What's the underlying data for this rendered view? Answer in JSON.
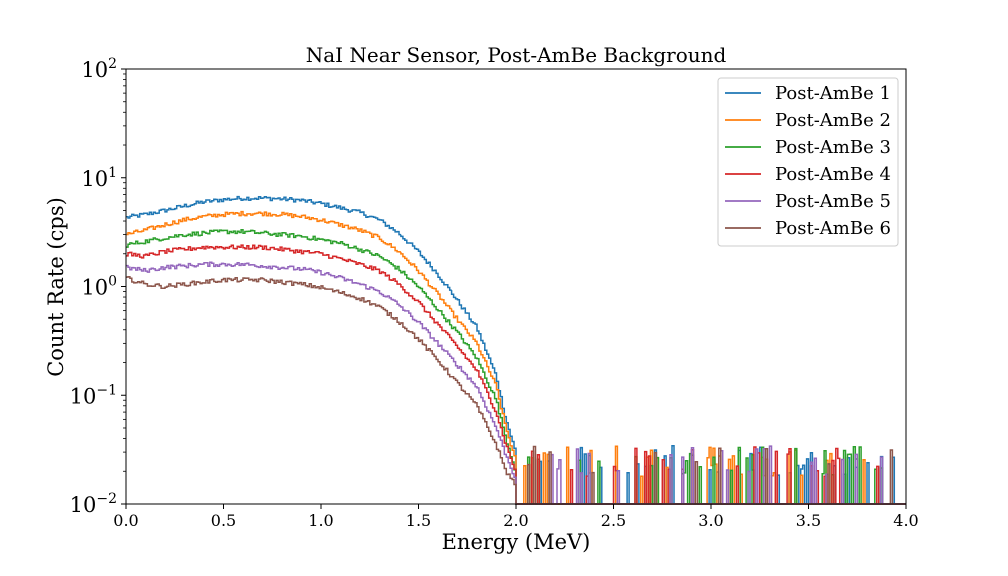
{
  "chart_data": {
    "type": "line",
    "title": "NaI Near Sensor, Post-AmBe Background",
    "xlabel": "Energy (MeV)",
    "ylabel": "Count Rate (cps)",
    "xlim": [
      0,
      4
    ],
    "ylim": [
      0.01,
      100
    ],
    "yscale": "log",
    "x_ticks": [
      "0.0",
      "0.5",
      "1.0",
      "1.5",
      "2.0",
      "2.5",
      "3.0",
      "3.5",
      "4.0"
    ],
    "y_ticks": [
      {
        "base": "10",
        "exp": "−2"
      },
      {
        "base": "10",
        "exp": "−1"
      },
      {
        "base": "10",
        "exp": "0"
      },
      {
        "base": "10",
        "exp": "1"
      },
      {
        "base": "10",
        "exp": "2"
      }
    ],
    "grid": false,
    "legend_position": "top-right",
    "x": [
      0.0,
      0.1,
      0.2,
      0.3,
      0.4,
      0.5,
      0.6,
      0.7,
      0.8,
      0.9,
      1.0,
      1.1,
      1.2,
      1.3,
      1.4,
      1.5,
      1.6,
      1.7,
      1.8,
      1.9,
      1.95,
      2.0
    ],
    "series": [
      {
        "name": "Post-AmBe 1",
        "color": "#1f77b4",
        "values": [
          4.3,
          4.6,
          5.0,
          5.5,
          6.0,
          6.3,
          6.5,
          6.5,
          6.4,
          6.2,
          5.8,
          5.3,
          4.8,
          4.1,
          3.1,
          2.1,
          1.3,
          0.75,
          0.42,
          0.15,
          0.06,
          0.03
        ]
      },
      {
        "name": "Post-AmBe 2",
        "color": "#ff7f0e",
        "values": [
          3.0,
          3.3,
          3.7,
          4.1,
          4.4,
          4.6,
          4.7,
          4.7,
          4.6,
          4.4,
          4.1,
          3.7,
          3.3,
          2.8,
          2.1,
          1.4,
          0.85,
          0.5,
          0.3,
          0.12,
          0.05,
          0.025
        ]
      },
      {
        "name": "Post-AmBe 3",
        "color": "#2ca02c",
        "values": [
          2.4,
          2.6,
          2.8,
          3.0,
          3.1,
          3.2,
          3.2,
          3.1,
          3.0,
          2.9,
          2.7,
          2.5,
          2.2,
          1.9,
          1.45,
          1.0,
          0.62,
          0.38,
          0.22,
          0.09,
          0.04,
          0.02
        ]
      },
      {
        "name": "Post-AmBe 4",
        "color": "#d62728",
        "values": [
          2.0,
          1.9,
          2.1,
          2.2,
          2.3,
          2.3,
          2.3,
          2.3,
          2.2,
          2.1,
          2.0,
          1.8,
          1.6,
          1.4,
          1.05,
          0.72,
          0.45,
          0.28,
          0.17,
          0.07,
          0.035,
          0.02
        ]
      },
      {
        "name": "Post-AmBe 5",
        "color": "#9467bd",
        "values": [
          1.5,
          1.4,
          1.5,
          1.55,
          1.6,
          1.6,
          1.6,
          1.55,
          1.5,
          1.45,
          1.35,
          1.2,
          1.05,
          0.9,
          0.68,
          0.47,
          0.3,
          0.19,
          0.12,
          0.05,
          0.028,
          0.017
        ]
      },
      {
        "name": "Post-AmBe 6",
        "color": "#8c564b",
        "values": [
          1.2,
          1.05,
          1.0,
          1.05,
          1.1,
          1.15,
          1.15,
          1.15,
          1.1,
          1.05,
          0.98,
          0.88,
          0.78,
          0.65,
          0.48,
          0.33,
          0.21,
          0.13,
          0.08,
          0.035,
          0.02,
          0.015
        ]
      }
    ],
    "tail": {
      "x_range": [
        2.0,
        3.95
      ],
      "spike_top": 0.03
    }
  }
}
